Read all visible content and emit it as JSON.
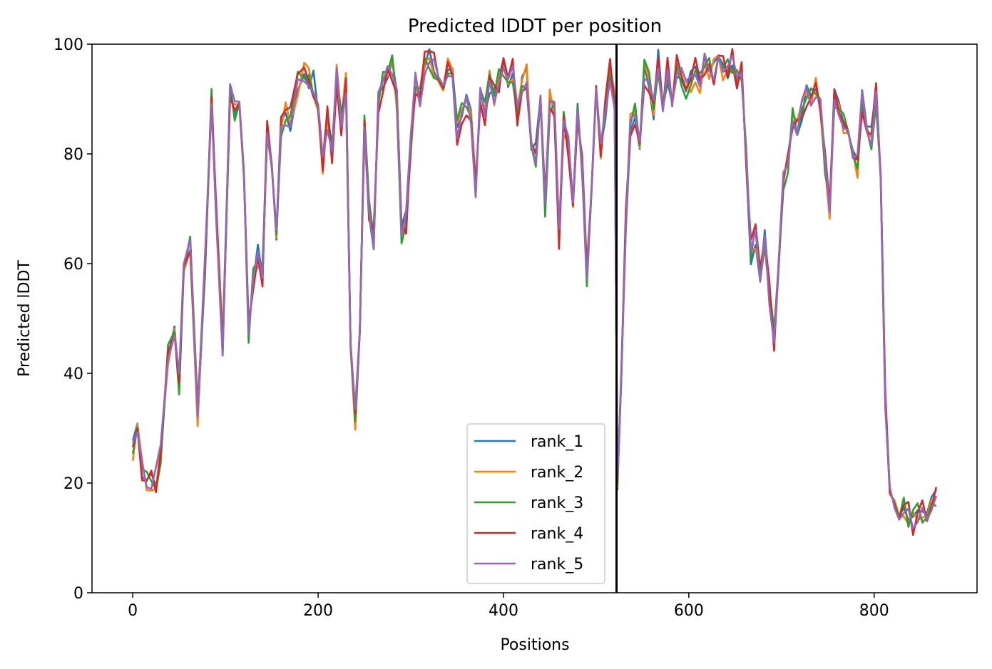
{
  "chart_data": {
    "type": "line",
    "title": "Predicted lDDT per position",
    "xlabel": "Positions",
    "ylabel": "Predicted lDDT",
    "xlim": [
      -44,
      911
    ],
    "ylim": [
      0,
      100
    ],
    "xticks": [
      0,
      200,
      400,
      600,
      800
    ],
    "yticks": [
      0,
      20,
      40,
      60,
      80,
      100
    ],
    "legend_position": "lower-center",
    "divider_x": 522,
    "series": [
      {
        "name": "rank_1",
        "color": "#1f77b4"
      },
      {
        "name": "rank_2",
        "color": "#ff7f0e"
      },
      {
        "name": "rank_3",
        "color": "#2ca02c"
      },
      {
        "name": "rank_4",
        "color": "#d62728"
      },
      {
        "name": "rank_5",
        "color": "#9467bd"
      }
    ],
    "x": [
      0,
      5,
      10,
      15,
      20,
      25,
      30,
      38,
      45,
      50,
      55,
      62,
      70,
      78,
      85,
      90,
      97,
      105,
      110,
      115,
      120,
      125,
      130,
      135,
      140,
      145,
      150,
      155,
      160,
      165,
      170,
      178,
      185,
      190,
      195,
      200,
      205,
      210,
      215,
      220,
      225,
      230,
      235,
      240,
      245,
      250,
      255,
      260,
      265,
      270,
      275,
      280,
      285,
      290,
      295,
      300,
      305,
      310,
      315,
      320,
      325,
      330,
      335,
      340,
      345,
      350,
      355,
      360,
      365,
      370,
      375,
      380,
      385,
      390,
      395,
      400,
      405,
      410,
      415,
      420,
      425,
      430,
      435,
      440,
      445,
      450,
      455,
      460,
      465,
      470,
      475,
      480,
      485,
      490,
      495,
      500,
      505,
      510,
      515,
      520,
      523,
      527,
      532,
      537,
      542,
      547,
      552,
      557,
      562,
      567,
      572,
      577,
      582,
      587,
      592,
      597,
      602,
      607,
      612,
      617,
      622,
      627,
      632,
      637,
      642,
      647,
      652,
      657,
      662,
      667,
      672,
      677,
      682,
      687,
      692,
      697,
      702,
      707,
      712,
      717,
      722,
      727,
      732,
      737,
      742,
      747,
      752,
      757,
      762,
      767,
      772,
      777,
      782,
      787,
      792,
      797,
      802,
      807,
      812,
      817,
      822,
      827,
      832,
      837,
      842,
      847,
      852,
      857,
      862,
      867
    ],
    "base_values": [
      26,
      29,
      23,
      21,
      20,
      21,
      25,
      43,
      48,
      38,
      60,
      63,
      32,
      60,
      90,
      70,
      45,
      91,
      88,
      90,
      78,
      47,
      58,
      62,
      58,
      85,
      78,
      65,
      85,
      87,
      86,
      93,
      95,
      94,
      93,
      88,
      78,
      86,
      80,
      94,
      86,
      93,
      45,
      32,
      48,
      85,
      70,
      64,
      90,
      94,
      95,
      96,
      90,
      65,
      68,
      82,
      93,
      90,
      96,
      97,
      96,
      94,
      93,
      96,
      95,
      84,
      88,
      89,
      86,
      74,
      91,
      88,
      93,
      90,
      94,
      96,
      92,
      95,
      87,
      93,
      94,
      82,
      80,
      92,
      70,
      90,
      88,
      65,
      86,
      82,
      72,
      87,
      78,
      57,
      73,
      90,
      80,
      88,
      95,
      90,
      20,
      40,
      68,
      85,
      88,
      82,
      95,
      94,
      88,
      97,
      88,
      95,
      90,
      96,
      94,
      92,
      93,
      95,
      93,
      97,
      96,
      95,
      97,
      96,
      95,
      97,
      94,
      95,
      80,
      62,
      65,
      58,
      64,
      54,
      46,
      60,
      75,
      78,
      86,
      84,
      88,
      91,
      90,
      92,
      88,
      78,
      70,
      90,
      88,
      86,
      84,
      80,
      78,
      90,
      85,
      83,
      91,
      75,
      35,
      20,
      15,
      14,
      15,
      14,
      13,
      14,
      15,
      15,
      16,
      18
    ]
  }
}
